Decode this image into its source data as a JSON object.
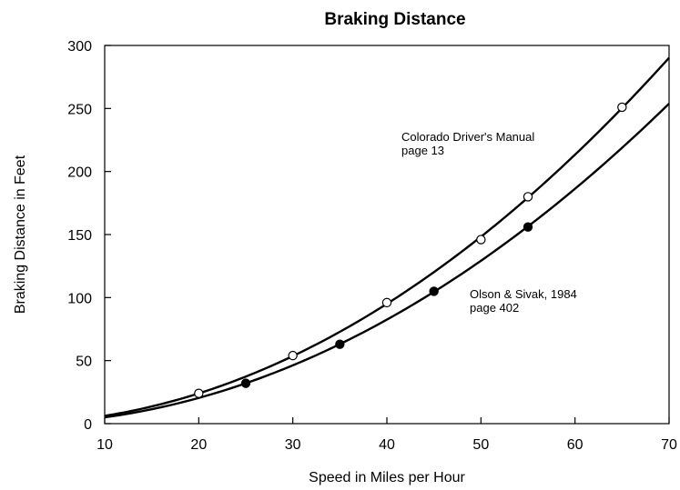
{
  "chart_data": {
    "type": "scatter",
    "title": "Braking Distance",
    "xlabel": "Speed in Miles per Hour",
    "ylabel": "Braking Distance in Feet",
    "xlim": [
      10,
      70
    ],
    "ylim": [
      0,
      300
    ],
    "xticks": [
      10,
      20,
      30,
      40,
      50,
      60,
      70
    ],
    "yticks": [
      0,
      50,
      100,
      150,
      200,
      250,
      300
    ],
    "grid": false,
    "series": [
      {
        "marker": "open-circle",
        "color": "#000000",
        "x": [
          20,
          30,
          40,
          50,
          55,
          65
        ],
        "y": [
          24,
          54,
          96,
          146,
          180,
          251
        ],
        "fit_curve": {
          "x": [
            10,
            70
          ],
          "y": [
            6,
            290
          ]
        }
      },
      {
        "marker": "filled-circle",
        "color": "#000000",
        "x": [
          25,
          35,
          45,
          55
        ],
        "y": [
          32,
          63,
          105,
          156
        ],
        "fit_curve": {
          "x": [
            10,
            70
          ],
          "y": [
            5,
            254
          ]
        }
      }
    ],
    "annotations": [
      {
        "lines": [
          "Colorado Driver's Manual",
          "page 13"
        ],
        "anchor": {
          "x": 40,
          "y": 226
        }
      },
      {
        "lines": [
          "Olson & Sivak, 1984",
          "page 402"
        ],
        "anchor": {
          "x": 52,
          "y": 105
        }
      }
    ]
  }
}
